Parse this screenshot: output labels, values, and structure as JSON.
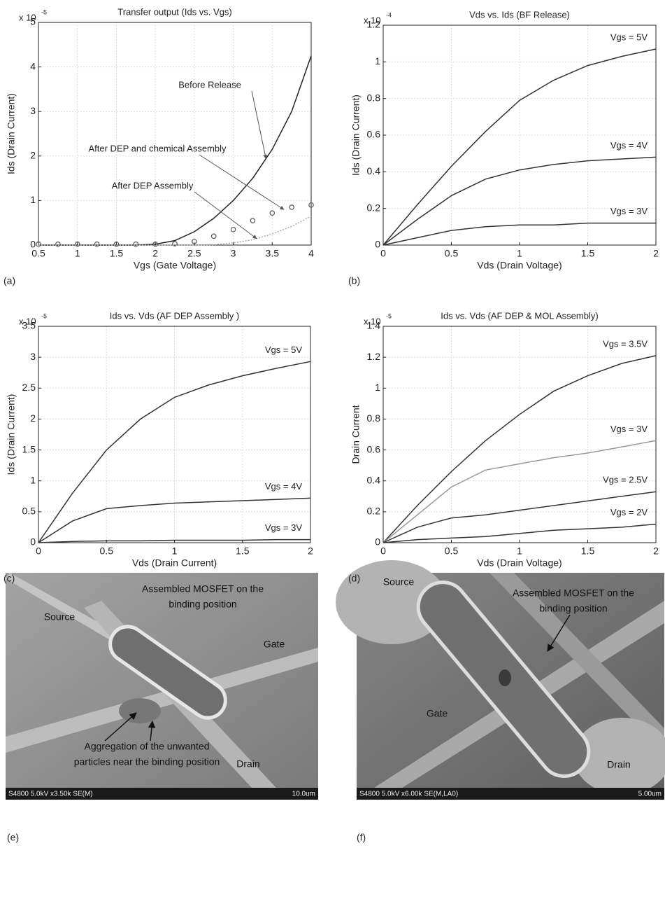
{
  "chart_data": [
    {
      "type": "line",
      "panel_label": "(a)",
      "title": "Transfer output (Ids vs. Vgs)",
      "xlabel": "Vgs (Gate Voltage)",
      "ylabel": "Ids (Drain Current)",
      "y_multiplier": {
        "base": "x 10",
        "exponent": "-5"
      },
      "xlim": [
        0.5,
        4
      ],
      "ylim": [
        0,
        5
      ],
      "xticks": [
        0.5,
        1,
        1.5,
        2,
        2.5,
        3,
        3.5,
        4
      ],
      "yticks": [
        0,
        1,
        2,
        3,
        4,
        5
      ],
      "grid": true,
      "x": [
        0.5,
        0.75,
        1,
        1.25,
        1.5,
        1.75,
        2,
        2.25,
        2.5,
        2.75,
        3,
        3.25,
        3.5,
        3.75,
        4
      ],
      "series": [
        {
          "name": "Before Release",
          "color": "#222222",
          "style": "solid",
          "values": [
            0,
            0,
            0,
            0,
            0,
            0,
            0.02,
            0.1,
            0.3,
            0.6,
            1.0,
            1.5,
            2.15,
            3.0,
            4.25
          ]
        },
        {
          "name": "After DEP and chemical Assembly",
          "color": "#555555",
          "style": "circles",
          "values": [
            0.02,
            0.02,
            0.02,
            0.02,
            0.02,
            0.02,
            0.02,
            0.03,
            0.08,
            0.2,
            0.35,
            0.55,
            0.72,
            0.85,
            0.9
          ]
        },
        {
          "name": "After DEP Assembly",
          "color": "#aaaaaa",
          "style": "dotted",
          "values": [
            0,
            0,
            0,
            0,
            0,
            0,
            0,
            0,
            0,
            0.01,
            0.05,
            0.12,
            0.25,
            0.42,
            0.65
          ]
        }
      ]
    },
    {
      "type": "line",
      "panel_label": "(b)",
      "title": "Vds vs. Ids (BF Release)",
      "xlabel": "Vds (Drain Voltage)",
      "ylabel": "Ids (Drain Current)",
      "y_multiplier": {
        "base": "x 10",
        "exponent": "-4"
      },
      "xlim": [
        0,
        2
      ],
      "ylim": [
        0,
        1.2
      ],
      "xticks": [
        0,
        0.5,
        1,
        1.5,
        2
      ],
      "yticks": [
        0,
        0.2,
        0.4,
        0.6,
        0.8,
        1,
        1.2
      ],
      "grid": true,
      "x": [
        0,
        0.25,
        0.5,
        0.75,
        1,
        1.25,
        1.5,
        1.75,
        2
      ],
      "series": [
        {
          "name": "Vgs = 5V",
          "color": "#333333",
          "style": "solid",
          "values": [
            0,
            0.22,
            0.43,
            0.62,
            0.79,
            0.9,
            0.98,
            1.03,
            1.07
          ]
        },
        {
          "name": "Vgs = 4V",
          "color": "#333333",
          "style": "solid",
          "values": [
            0,
            0.14,
            0.27,
            0.36,
            0.41,
            0.44,
            0.46,
            0.47,
            0.48
          ]
        },
        {
          "name": "Vgs = 3V",
          "color": "#333333",
          "style": "solid",
          "values": [
            0,
            0.04,
            0.08,
            0.1,
            0.11,
            0.11,
            0.12,
            0.12,
            0.12
          ]
        }
      ]
    },
    {
      "type": "line",
      "panel_label": "(c)",
      "title": "Ids vs. Vds (AF DEP Assembly )",
      "xlabel": "Vds (Drain Current)",
      "ylabel": "Ids (Drain Current)",
      "y_multiplier": {
        "base": "x 10",
        "exponent": "-5"
      },
      "xlim": [
        0,
        2
      ],
      "ylim": [
        0,
        3.5
      ],
      "xticks": [
        0,
        0.5,
        1,
        1.5,
        2
      ],
      "yticks": [
        0,
        0.5,
        1,
        1.5,
        2,
        2.5,
        3,
        3.5
      ],
      "grid": true,
      "x": [
        0,
        0.25,
        0.5,
        0.75,
        1,
        1.25,
        1.5,
        1.75,
        2
      ],
      "series": [
        {
          "name": "Vgs = 5V",
          "color": "#333333",
          "style": "solid",
          "values": [
            0,
            0.8,
            1.5,
            2.0,
            2.35,
            2.55,
            2.7,
            2.82,
            2.93
          ]
        },
        {
          "name": "Vgs = 4V",
          "color": "#333333",
          "style": "solid",
          "values": [
            0,
            0.35,
            0.55,
            0.6,
            0.64,
            0.66,
            0.68,
            0.7,
            0.72
          ]
        },
        {
          "name": "Vgs = 3V",
          "color": "#333333",
          "style": "solid",
          "values": [
            0,
            0.02,
            0.03,
            0.03,
            0.04,
            0.04,
            0.04,
            0.05,
            0.05
          ]
        }
      ]
    },
    {
      "type": "line",
      "panel_label": "(d)",
      "title": "Ids vs. Vds (AF DEP & MOL Assembly)",
      "xlabel": "Vds (Drain Voltage)",
      "ylabel": "Drain Current",
      "y_multiplier": {
        "base": "x 10",
        "exponent": "-5"
      },
      "xlim": [
        0,
        2
      ],
      "ylim": [
        0,
        1.4
      ],
      "xticks": [
        0,
        0.5,
        1,
        1.5,
        2
      ],
      "yticks": [
        0,
        0.2,
        0.4,
        0.6,
        0.8,
        1,
        1.2,
        1.4
      ],
      "grid": true,
      "x": [
        0,
        0.25,
        0.5,
        0.75,
        1,
        1.25,
        1.5,
        1.75,
        2
      ],
      "series": [
        {
          "name": "Vgs = 3.5V",
          "color": "#333333",
          "style": "solid",
          "values": [
            0,
            0.24,
            0.46,
            0.66,
            0.83,
            0.98,
            1.08,
            1.16,
            1.21
          ]
        },
        {
          "name": "Vgs = 3V",
          "color": "#999999",
          "style": "solid",
          "values": [
            0,
            0.18,
            0.36,
            0.47,
            0.51,
            0.55,
            0.58,
            0.62,
            0.66
          ]
        },
        {
          "name": "Vgs = 2.5V",
          "color": "#333333",
          "style": "solid",
          "values": [
            0,
            0.1,
            0.16,
            0.18,
            0.21,
            0.24,
            0.27,
            0.3,
            0.33
          ]
        },
        {
          "name": "Vgs = 2V",
          "color": "#333333",
          "style": "solid",
          "values": [
            0,
            0.02,
            0.03,
            0.04,
            0.06,
            0.08,
            0.09,
            0.1,
            0.12
          ]
        }
      ]
    }
  ],
  "images": [
    {
      "panel_label": "(e)",
      "info": "S4800 5.0kV x3.50k SE(M)",
      "scale": "10.0um",
      "labels": [
        {
          "lines": [
            "Source"
          ]
        },
        {
          "lines": [
            "Assembled MOSFET on the",
            "binding position"
          ]
        },
        {
          "lines": [
            "Gate"
          ]
        },
        {
          "lines": [
            "Drain"
          ]
        },
        {
          "lines": [
            "Aggregation of the unwanted",
            "particles near the binding position"
          ]
        }
      ]
    },
    {
      "panel_label": "(f)",
      "info": "S4800 5.0kV x6.00k SE(M,LA0)",
      "scale": "5.00um",
      "labels": [
        {
          "lines": [
            "Source"
          ]
        },
        {
          "lines": [
            "Assembled MOSFET on the",
            "binding position"
          ]
        },
        {
          "lines": [
            "Gate"
          ]
        },
        {
          "lines": [
            "Drain"
          ]
        }
      ]
    }
  ]
}
